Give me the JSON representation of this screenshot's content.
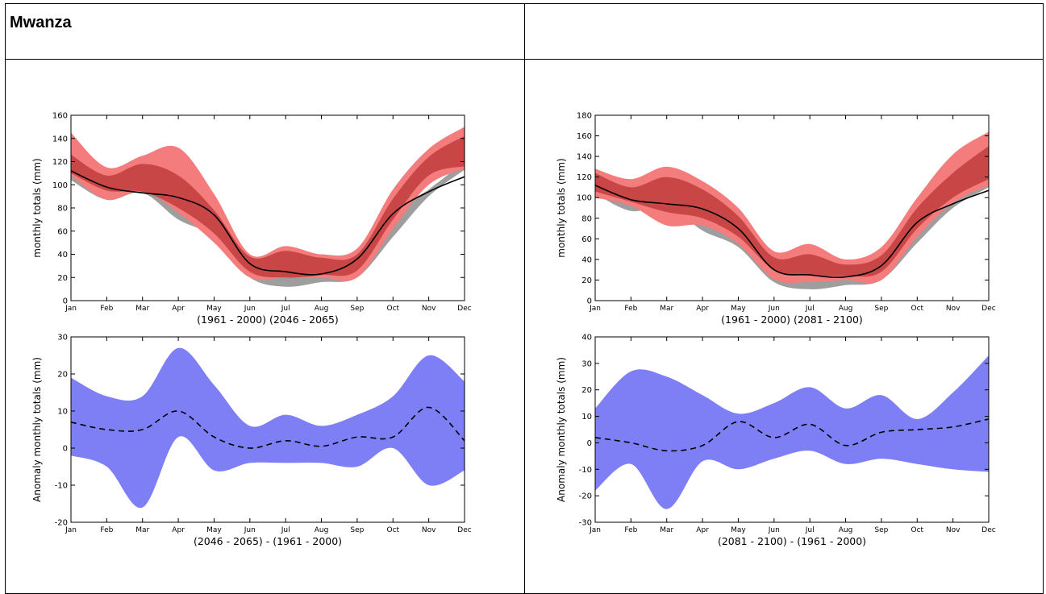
{
  "header": {
    "city": "Mwanza"
  },
  "colors": {
    "gray": "#9e9e9e",
    "light_red": "#f47c7c",
    "dark_red": "#c84646",
    "blue": "#7f7ff5",
    "line": "#000000"
  },
  "months": [
    "Jan",
    "Feb",
    "Mar",
    "Apr",
    "May",
    "Jun",
    "Jul",
    "Aug",
    "Sep",
    "Oct",
    "Nov",
    "Dec"
  ],
  "chart_data": [
    {
      "type": "area",
      "xlabel": "(1961 - 2000) (2046 - 2065)",
      "ylabel": "monthly totals (mm)",
      "ylim": [
        0,
        160
      ],
      "yticks": [
        0,
        20,
        40,
        60,
        80,
        100,
        120,
        140,
        160
      ],
      "categories": [
        "Jan",
        "Feb",
        "Mar",
        "Apr",
        "May",
        "Jun",
        "Jul",
        "Aug",
        "Sep",
        "Oct",
        "Nov",
        "Dec"
      ],
      "bands": [
        {
          "color": "gray",
          "low": [
            104,
            87,
            93,
            70,
            55,
            20,
            12,
            16,
            20,
            55,
            90,
            113
          ],
          "high": [
            112,
            98,
            96,
            90,
            72,
            36,
            26,
            24,
            30,
            75,
            96,
            120
          ]
        },
        {
          "color": "light_red",
          "low": [
            108,
            87,
            95,
            76,
            50,
            20,
            20,
            20,
            20,
            62,
            100,
            114
          ],
          "high": [
            145,
            115,
            125,
            132,
            92,
            40,
            47,
            40,
            45,
            96,
            131,
            150
          ]
        },
        {
          "color": "dark_red",
          "low": [
            110,
            95,
            94,
            80,
            58,
            25,
            20,
            22,
            26,
            70,
            108,
            116
          ],
          "high": [
            126,
            108,
            118,
            108,
            78,
            38,
            43,
            37,
            40,
            88,
            124,
            142
          ]
        }
      ],
      "series": [
        {
          "style": "solid",
          "values": [
            112,
            98,
            93,
            89,
            74,
            32,
            25,
            23,
            36,
            75,
            94,
            107
          ]
        }
      ]
    },
    {
      "type": "area",
      "xlabel": "(1961 - 2000) (2081 - 2100)",
      "ylabel": "monthly totals (mm)",
      "ylim": [
        0,
        180
      ],
      "yticks": [
        0,
        20,
        40,
        60,
        80,
        100,
        120,
        140,
        160,
        180
      ],
      "categories": [
        "Jan",
        "Feb",
        "Mar",
        "Apr",
        "May",
        "Jun",
        "Jul",
        "Aug",
        "Sep",
        "Oct",
        "Nov",
        "Dec"
      ],
      "bands": [
        {
          "color": "gray",
          "low": [
            104,
            87,
            92,
            68,
            52,
            18,
            11,
            15,
            20,
            56,
            90,
            110
          ],
          "high": [
            113,
            99,
            96,
            90,
            72,
            34,
            26,
            24,
            30,
            76,
            97,
            118
          ]
        },
        {
          "color": "light_red",
          "low": [
            100,
            92,
            73,
            73,
            55,
            21,
            18,
            20,
            20,
            62,
            95,
            112
          ],
          "high": [
            128,
            118,
            130,
            116,
            90,
            48,
            55,
            40,
            52,
            100,
            142,
            164
          ]
        },
        {
          "color": "dark_red",
          "low": [
            106,
            96,
            86,
            80,
            62,
            30,
            25,
            24,
            28,
            70,
            100,
            118
          ],
          "high": [
            124,
            110,
            120,
            108,
            82,
            42,
            45,
            35,
            44,
            90,
            124,
            150
          ]
        }
      ],
      "series": [
        {
          "style": "solid",
          "values": [
            112,
            98,
            94,
            89,
            70,
            30,
            25,
            23,
            34,
            76,
            94,
            107
          ]
        }
      ]
    },
    {
      "type": "area",
      "xlabel": "(2046 - 2065) - (1961 - 2000)",
      "ylabel": "Anomaly monthly totals (mm)",
      "ylim": [
        -20,
        30
      ],
      "yticks": [
        -20,
        -10,
        0,
        10,
        20,
        30
      ],
      "categories": [
        "Jan",
        "Feb",
        "Mar",
        "Apr",
        "May",
        "Jun",
        "Jul",
        "Aug",
        "Sep",
        "Oct",
        "Nov",
        "Dec"
      ],
      "bands": [
        {
          "color": "blue",
          "low": [
            -2,
            -5,
            -16,
            3,
            -6,
            -4,
            -4,
            -4,
            -5,
            0,
            -10,
            -6
          ],
          "high": [
            19,
            14,
            14,
            27,
            17,
            6,
            9,
            6,
            9,
            14,
            25,
            18
          ]
        }
      ],
      "series": [
        {
          "style": "dashed",
          "values": [
            7,
            5,
            5,
            10,
            3,
            0,
            2,
            0.5,
            3,
            3,
            11,
            2
          ]
        }
      ]
    },
    {
      "type": "area",
      "xlabel": "(2081 - 2100) - (1961 - 2000)",
      "ylabel": "Anomaly monthly totals (mm)",
      "ylim": [
        -30,
        40
      ],
      "yticks": [
        -30,
        -20,
        -10,
        0,
        10,
        20,
        30,
        40
      ],
      "categories": [
        "Jan",
        "Feb",
        "Mar",
        "Apr",
        "May",
        "Jun",
        "Jul",
        "Aug",
        "Sep",
        "Oct",
        "Nov",
        "Dec"
      ],
      "bands": [
        {
          "color": "blue",
          "low": [
            -18,
            -8,
            -25,
            -7,
            -10,
            -6,
            -3,
            -8,
            -6,
            -8,
            -10,
            -11
          ],
          "high": [
            13,
            27,
            25,
            18,
            11,
            15,
            21,
            13,
            18,
            9,
            19,
            33
          ]
        }
      ],
      "series": [
        {
          "style": "dashed",
          "values": [
            2,
            0,
            -3,
            -1,
            8,
            2,
            7,
            -1,
            4,
            5,
            6,
            9
          ]
        }
      ]
    }
  ]
}
